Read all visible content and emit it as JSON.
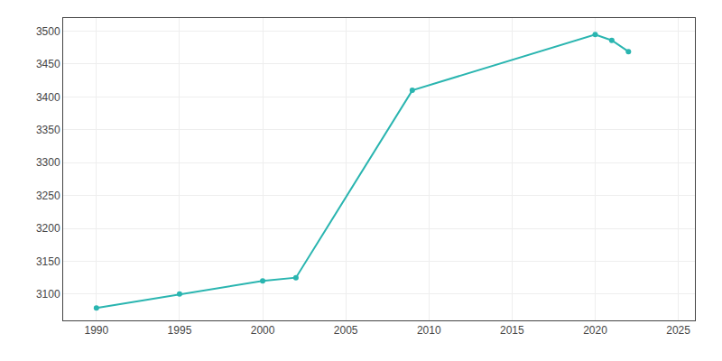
{
  "chart_data": {
    "type": "line",
    "x": [
      1990,
      1995,
      2000,
      2002,
      2009,
      2020,
      2021,
      2022
    ],
    "values": [
      3079,
      3100,
      3120,
      3125,
      3410,
      3495,
      3486,
      3469
    ],
    "color": "#2ab5b0",
    "marker": "circle",
    "xlim": [
      1988,
      2026
    ],
    "ylim": [
      3060,
      3520
    ],
    "xticks": [
      1990,
      1995,
      2000,
      2005,
      2010,
      2015,
      2020,
      2025
    ],
    "yticks": [
      3100,
      3150,
      3200,
      3250,
      3300,
      3350,
      3400,
      3450,
      3500
    ],
    "grid": true
  }
}
